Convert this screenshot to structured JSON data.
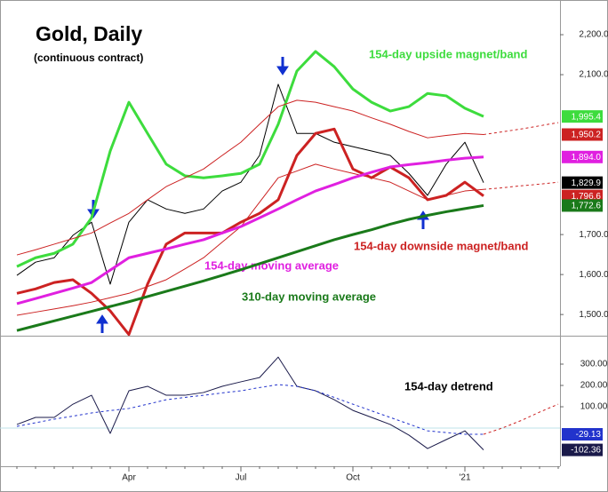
{
  "chart_data": [
    {
      "type": "line",
      "title": "Gold, Daily",
      "subtitle": "(continuous contract)",
      "categories": [
        null,
        null,
        null,
        null,
        null,
        null,
        "Apr",
        null,
        null,
        null,
        null,
        null,
        "Jul",
        null,
        null,
        null,
        null,
        null,
        "Oct",
        null,
        null,
        null,
        null,
        null,
        "'21",
        null,
        null,
        null,
        null,
        null
      ],
      "ylim": [
        1447,
        2269
      ],
      "yticks": [
        {
          "value": 1500,
          "label": "1,500.0"
        },
        {
          "value": 1600,
          "label": "1,600.0"
        },
        {
          "value": 1700,
          "label": "1,700.0"
        },
        {
          "value": 2100,
          "label": "2,100.0"
        },
        {
          "value": 2200,
          "label": "2,200.0"
        }
      ],
      "series": [
        {
          "color": "#000000",
          "style": "thin",
          "values": [
            1598,
            1631,
            1642,
            1698,
            1731,
            1576,
            1731,
            1787,
            1764,
            1753,
            1764,
            1809,
            1831,
            1898,
            2076,
            1953,
            1953,
            1931,
            1920,
            1909,
            1898,
            1853,
            1798,
            1876,
            1931,
            1829.9,
            null,
            null,
            null,
            null
          ],
          "value_labels": [
            null,
            null,
            null,
            null,
            null,
            null,
            null,
            null,
            null,
            null,
            null,
            null,
            null,
            null,
            null,
            null,
            null,
            null,
            null,
            null,
            null,
            null,
            null,
            null,
            null,
            "1,829.9",
            null,
            null,
            null,
            null
          ]
        },
        {
          "name": "154-day upside magnet/band",
          "color": "#3ddc3d",
          "style": "thick",
          "values": [
            1620,
            1642,
            1653,
            1676,
            1742,
            1909,
            2031,
            1953,
            1876,
            1847,
            1842,
            1847,
            1853,
            1876,
            1976,
            2109,
            2158,
            2120,
            2064,
            2031,
            2009,
            2020,
            2053,
            2047,
            2016,
            1995.4,
            null,
            null,
            null,
            null
          ],
          "value_labels": [
            null,
            null,
            null,
            null,
            null,
            null,
            null,
            null,
            null,
            null,
            null,
            null,
            null,
            null,
            null,
            null,
            null,
            null,
            null,
            null,
            null,
            null,
            null,
            null,
            null,
            "1,995.4",
            null,
            null,
            null,
            null
          ]
        },
        {
          "color": "#cc2222",
          "style": "thin",
          "values": [
            1649,
            1662,
            1676,
            1690,
            1704,
            1729,
            1753,
            1787,
            1820,
            1842,
            1864,
            1898,
            1931,
            1976,
            2020,
            2036,
            2031,
            2020,
            2009,
            1992,
            1976,
            1958,
            1942,
            1948,
            1953,
            1950.2,
            null,
            null,
            null,
            null
          ],
          "value_labels": [
            null,
            null,
            null,
            null,
            null,
            null,
            null,
            null,
            null,
            null,
            null,
            null,
            null,
            null,
            null,
            null,
            null,
            null,
            null,
            null,
            null,
            null,
            null,
            null,
            null,
            "1,950.2",
            null,
            null,
            null,
            null
          ]
        },
        {
          "color": "#cc2222",
          "style": "thin",
          "values": [
            1498,
            1506,
            1514,
            1522,
            1531,
            1542,
            1553,
            1570,
            1587,
            1614,
            1642,
            1681,
            1720,
            1781,
            1842,
            1859,
            1876,
            1864,
            1853,
            1842,
            1831,
            1809,
            1787,
            1798,
            1809,
            1813,
            null,
            null,
            null,
            null
          ]
        },
        {
          "name": "154-day downside magnet/band",
          "color": "#cc2222",
          "style": "thick",
          "values": [
            1553,
            1564,
            1580,
            1587,
            1553,
            1509,
            1450,
            1576,
            1676,
            1704,
            1704,
            1704,
            1731,
            1753,
            1787,
            1898,
            1953,
            1964,
            1864,
            1842,
            1869,
            1842,
            1787,
            1798,
            1831,
            1796.6,
            null,
            null,
            null,
            null
          ],
          "value_labels": [
            null,
            null,
            null,
            null,
            null,
            null,
            null,
            null,
            null,
            null,
            null,
            null,
            null,
            null,
            null,
            null,
            null,
            null,
            null,
            null,
            null,
            null,
            null,
            null,
            null,
            "1,796.6",
            null,
            null,
            null,
            null
          ]
        },
        {
          "name": "154-day moving average",
          "color": "#e020e0",
          "style": "thick",
          "values": [
            1527,
            1540,
            1553,
            1566,
            1580,
            1611,
            1642,
            1653,
            1664,
            1676,
            1687,
            1704,
            1720,
            1742,
            1764,
            1787,
            1809,
            1825,
            1842,
            1856,
            1869,
            1875,
            1880,
            1886,
            1891,
            1894.0,
            null,
            null,
            null,
            null
          ],
          "value_labels": [
            null,
            null,
            null,
            null,
            null,
            null,
            null,
            null,
            null,
            null,
            null,
            null,
            null,
            null,
            null,
            null,
            null,
            null,
            null,
            null,
            null,
            null,
            null,
            null,
            null,
            "1,894.0",
            null,
            null,
            null,
            null
          ]
        },
        {
          "name": "310-day moving average",
          "color": "#1a7a1a",
          "style": "thick",
          "values": [
            1460,
            1472,
            1484,
            1496,
            1508,
            1520,
            1532,
            1545,
            1558,
            1571,
            1584,
            1598,
            1612,
            1627,
            1642,
            1657,
            1672,
            1687,
            1700,
            1712,
            1726,
            1738,
            1748,
            1757,
            1765,
            1772.6,
            null,
            null,
            null,
            null
          ],
          "value_labels": [
            null,
            null,
            null,
            null,
            null,
            null,
            null,
            null,
            null,
            null,
            null,
            null,
            null,
            null,
            null,
            null,
            null,
            null,
            null,
            null,
            null,
            null,
            null,
            null,
            null,
            "1,772.6",
            null,
            null,
            null,
            null
          ]
        },
        {
          "color": "#cc2222",
          "style": "dashed",
          "values": [
            null,
            null,
            null,
            null,
            null,
            null,
            null,
            null,
            null,
            null,
            null,
            null,
            null,
            null,
            null,
            null,
            null,
            null,
            null,
            null,
            null,
            null,
            null,
            null,
            null,
            1950.2,
            1957,
            1964,
            1972,
            1980
          ]
        },
        {
          "color": "#cc2222",
          "style": "dashed",
          "values": [
            null,
            null,
            null,
            null,
            null,
            null,
            null,
            null,
            null,
            null,
            null,
            null,
            null,
            null,
            null,
            null,
            null,
            null,
            null,
            null,
            null,
            null,
            null,
            null,
            null,
            1813,
            1817,
            1822,
            1826,
            1831
          ]
        }
      ]
    },
    {
      "type": "line",
      "categories": [
        null,
        null,
        null,
        null,
        null,
        null,
        "Apr",
        null,
        null,
        null,
        null,
        null,
        "Jul",
        null,
        null,
        null,
        null,
        null,
        "Oct",
        null,
        null,
        null,
        null,
        null,
        "'21",
        null,
        null,
        null,
        null,
        null
      ],
      "ylim": [
        -179,
        425
      ],
      "yticks": [
        {
          "value": 100,
          "label": "100.00"
        },
        {
          "value": 200,
          "label": "200.00"
        },
        {
          "value": 300,
          "label": "300.00"
        }
      ],
      "series": [
        {
          "name": "154-day detrend",
          "color": "#1a1a4a",
          "style": "thin",
          "values": [
            17,
            50,
            50,
            112,
            154,
            -25,
            175,
            196,
            154,
            154,
            167,
            196,
            217,
            237,
            333,
            196,
            175,
            133,
            83,
            50,
            17,
            -33,
            -96,
            -54,
            -13,
            -102.36,
            null,
            null,
            null,
            null
          ],
          "value_labels": [
            null,
            null,
            null,
            null,
            null,
            null,
            null,
            null,
            null,
            null,
            null,
            null,
            null,
            null,
            null,
            null,
            null,
            null,
            null,
            null,
            null,
            null,
            null,
            null,
            null,
            "-102.36",
            null,
            null,
            null,
            null
          ]
        },
        {
          "color": "#2233cc",
          "style": "dashed",
          "values": [
            8,
            25,
            42,
            56,
            71,
            82,
            92,
            112,
            133,
            144,
            154,
            165,
            175,
            190,
            204,
            196,
            175,
            144,
            112,
            81,
            50,
            19,
            -13,
            -21,
            -29,
            -29.13,
            null,
            null,
            null,
            null
          ],
          "value_labels": [
            null,
            null,
            null,
            null,
            null,
            null,
            null,
            null,
            null,
            null,
            null,
            null,
            null,
            null,
            null,
            null,
            null,
            null,
            null,
            null,
            null,
            null,
            null,
            null,
            null,
            "-29.13",
            null,
            null,
            null,
            null
          ]
        },
        {
          "color": "#cc2222",
          "style": "dashed",
          "values": [
            null,
            null,
            null,
            null,
            null,
            null,
            null,
            null,
            null,
            null,
            null,
            null,
            null,
            null,
            null,
            null,
            null,
            null,
            null,
            null,
            null,
            null,
            null,
            null,
            null,
            -29.13,
            0,
            35,
            75,
            112
          ]
        }
      ]
    }
  ]
}
